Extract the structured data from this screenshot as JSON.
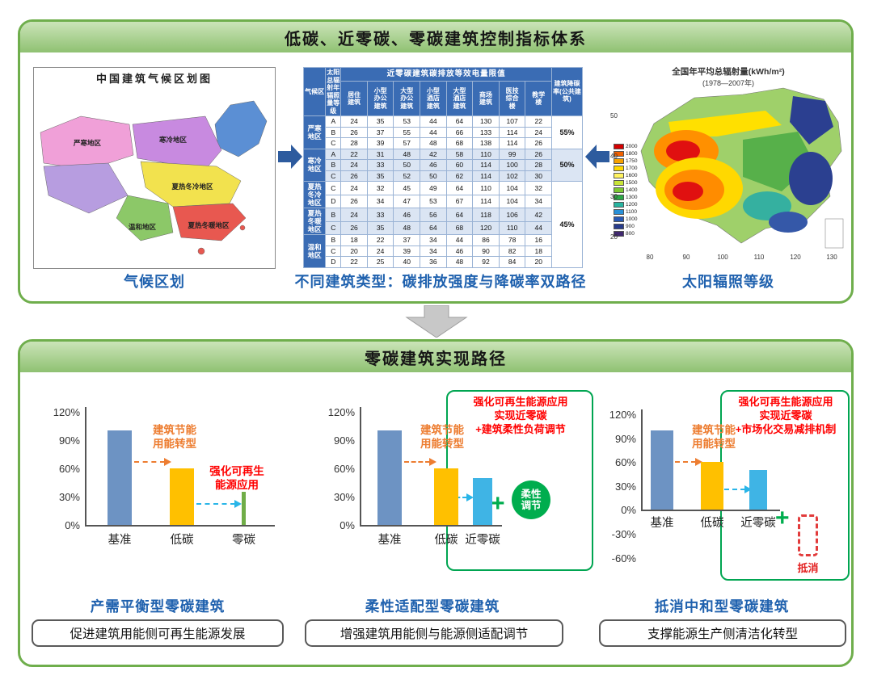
{
  "top_panel": {
    "title": "低碳、近零碳、零碳建筑控制指标体系",
    "left_map": {
      "title": "中国建筑气候区划图",
      "caption": "气候区划",
      "regions": [
        {
          "name": "严寒地区",
          "color": "#f0a0d8"
        },
        {
          "name": "寒冷地区",
          "color": "#c88ae0"
        },
        {
          "name": "夏热冬冷地区",
          "color": "#f2e24e"
        },
        {
          "name": "夏热冬暖地区",
          "color": "#e85850"
        },
        {
          "name": "温和地区",
          "color": "#8cc868"
        }
      ]
    },
    "table": {
      "caption": "不同建筑类型：碳排放强度与降碳率双路径",
      "corner_header": "气候区",
      "radiation_header": "太阳总辐射年辐照量等级",
      "group_header": "近零碳建筑碳排放等效电量限值",
      "building_types": [
        "居住\n建筑",
        "小型\n办公\n建筑",
        "大型\n办公\n建筑",
        "小型\n酒店\n建筑",
        "大型\n酒店\n建筑",
        "商场\n建筑",
        "医技\n综合\n楼",
        "教学\n楼"
      ],
      "reduction_header": "建筑降碳率(公共建筑)",
      "zones": [
        {
          "name": "严寒地区",
          "shaded": false,
          "reduction": {
            "text": "55%",
            "span": 3
          },
          "rows": [
            {
              "level": "A",
              "values": [
                24,
                35,
                53,
                44,
                64,
                130,
                107,
                22
              ]
            },
            {
              "level": "B",
              "values": [
                26,
                37,
                55,
                44,
                66,
                133,
                114,
                24
              ]
            },
            {
              "level": "C",
              "values": [
                28,
                39,
                57,
                48,
                68,
                138,
                114,
                26
              ]
            }
          ]
        },
        {
          "name": "寒冷地区",
          "shaded": true,
          "reduction": {
            "text": "50%",
            "span": 3
          },
          "rows": [
            {
              "level": "A",
              "values": [
                22,
                31,
                48,
                42,
                58,
                110,
                99,
                26
              ]
            },
            {
              "level": "B",
              "values": [
                24,
                33,
                50,
                46,
                60,
                114,
                100,
                28
              ]
            },
            {
              "level": "C",
              "values": [
                26,
                35,
                52,
                50,
                62,
                114,
                102,
                30
              ]
            }
          ]
        },
        {
          "name": "夏热冬冷地区",
          "shaded": false,
          "reduction": {
            "text": "45%",
            "span": 7
          },
          "rows": [
            {
              "level": "C",
              "values": [
                24,
                32,
                45,
                49,
                64,
                110,
                104,
                32
              ]
            },
            {
              "level": "D",
              "values": [
                26,
                34,
                47,
                53,
                67,
                114,
                104,
                34
              ]
            }
          ]
        },
        {
          "name": "夏热冬暖地区",
          "shaded": true,
          "rows": [
            {
              "level": "B",
              "values": [
                24,
                33,
                46,
                56,
                64,
                118,
                106,
                42
              ]
            },
            {
              "level": "C",
              "values": [
                26,
                35,
                48,
                64,
                68,
                120,
                110,
                44
              ]
            }
          ]
        },
        {
          "name": "温和地区",
          "shaded": false,
          "rows": [
            {
              "level": "B",
              "values": [
                18,
                22,
                37,
                34,
                44,
                86,
                78,
                16
              ]
            },
            {
              "level": "C",
              "values": [
                20,
                24,
                39,
                34,
                46,
                90,
                82,
                18
              ]
            },
            {
              "level": "D",
              "values": [
                22,
                25,
                40,
                36,
                48,
                92,
                84,
                20
              ]
            }
          ]
        }
      ]
    },
    "right_map": {
      "title": "全国年平均总辐射量(kWh/m²)",
      "subtitle": "(1978—2007年)",
      "caption": "太阳辐照等级",
      "legend": [
        {
          "value": "2000",
          "color": "#d40000"
        },
        {
          "value": "1800",
          "color": "#f06000"
        },
        {
          "value": "1750",
          "color": "#f6a000"
        },
        {
          "value": "1700",
          "color": "#ffd800"
        },
        {
          "value": "1600",
          "color": "#fff360"
        },
        {
          "value": "1500",
          "color": "#c8e438"
        },
        {
          "value": "1400",
          "color": "#7cc832"
        },
        {
          "value": "1300",
          "color": "#2ca846"
        },
        {
          "value": "1200",
          "color": "#28b4a0"
        },
        {
          "value": "1100",
          "color": "#2890d8"
        },
        {
          "value": "1000",
          "color": "#2858b4"
        },
        {
          "value": "900",
          "color": "#283c8c"
        },
        {
          "value": "800",
          "color": "#402870"
        }
      ],
      "y_ticks": [
        "50",
        "40",
        "30",
        "20"
      ],
      "x_ticks": [
        "80",
        "90",
        "100",
        "110",
        "120",
        "130"
      ]
    }
  },
  "bottom_panel": {
    "title": "零碳建筑实现路径",
    "charts": [
      {
        "y_ticks": [
          "120%",
          "90%",
          "60%",
          "30%",
          "0%"
        ],
        "bars": [
          {
            "label": "基准",
            "value": 100,
            "color": "#6d93c3"
          },
          {
            "label": "低碳",
            "value": 60,
            "color": "#ffc000"
          },
          {
            "label": "零碳",
            "value": 35,
            "color": "#70ad47"
          }
        ],
        "annotations": {
          "energy_saving": "建筑节能\n用能转型",
          "renewable": "强化可再生\n能源应用"
        },
        "title": "产需平衡型零碳建筑",
        "description": "促进建筑用能侧可再生能源发展"
      },
      {
        "y_ticks": [
          "120%",
          "90%",
          "60%",
          "30%",
          "0%"
        ],
        "bars": [
          {
            "label": "基准",
            "value": 100,
            "color": "#6d93c3"
          },
          {
            "label": "低碳",
            "value": 60,
            "color": "#ffc000"
          },
          {
            "label": "近零碳",
            "value": 50,
            "color": "#3fb4e5"
          }
        ],
        "annotations": {
          "energy_saving": "建筑节能\n用能转型",
          "headline": "强化可再生能源应用\n实现近零碳\n+建筑柔性负荷调节",
          "plus": "+",
          "badge": "柔性\n调节"
        },
        "title": "柔性适配型零碳建筑",
        "description": "增强建筑用能侧与能源侧适配调节"
      },
      {
        "y_ticks": [
          "120%",
          "90%",
          "60%",
          "30%",
          "0%",
          "-30%",
          "-60%"
        ],
        "bars": [
          {
            "label": "基准",
            "value": 100,
            "color": "#6d93c3"
          },
          {
            "label": "低碳",
            "value": 60,
            "color": "#ffc000"
          },
          {
            "label": "近零碳",
            "value": 50,
            "color": "#3fb4e5"
          }
        ],
        "annotations": {
          "energy_saving": "建筑节能\n用能转型",
          "headline": "强化可再生能源应用\n实现近零碳\n+市场化交易减排机制",
          "plus": "+",
          "offset_label": "抵消"
        },
        "title": "抵消中和型零碳建筑",
        "description": "支撑能源生产侧清洁化转型"
      }
    ]
  }
}
